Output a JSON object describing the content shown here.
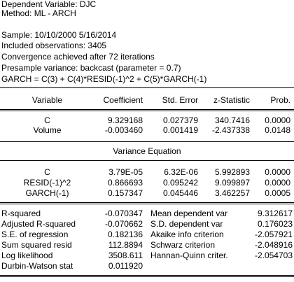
{
  "header": {
    "dependent": "Dependent Variable: DJC",
    "method": "Method: ML - ARCH",
    "sample": "Sample: 10/10/2000 5/16/2014",
    "included": "Included observations: 3405",
    "convergence": "Convergence achieved after 72 iterations",
    "presample": "Presample variance: backcast (parameter = 0.7)",
    "garch_eq": "GARCH = C(3) + C(4)*RESID(-1)^2 + C(5)*GARCH(-1)"
  },
  "columns": {
    "variable": "Variable",
    "coefficient": "Coefficient",
    "std_error": "Std. Error",
    "z_statistic": "z-Statistic",
    "prob": "Prob."
  },
  "mean_rows": [
    {
      "variable": "C",
      "coefficient": "9.329168",
      "std_error": "0.027379",
      "z": "340.7416",
      "prob": "0.0000"
    },
    {
      "variable": "Volume",
      "coefficient": "-0.003460",
      "std_error": "0.001419",
      "z": "-2.437338",
      "prob": "0.0148"
    }
  ],
  "variance_title": "Variance Equation",
  "variance_rows": [
    {
      "variable": "C",
      "coefficient": "3.79E-05",
      "std_error": "6.32E-06",
      "z": "5.992893",
      "prob": "0.0000"
    },
    {
      "variable": "RESID(-1)^2",
      "coefficient": "0.866693",
      "std_error": "0.095242",
      "z": "9.099897",
      "prob": "0.0000"
    },
    {
      "variable": "GARCH(-1)",
      "coefficient": "0.157347",
      "std_error": "0.045446",
      "z": "3.462257",
      "prob": "0.0005"
    }
  ],
  "stats": [
    {
      "left_label": "R-squared",
      "left_value": "-0.070347",
      "right_label": "Mean dependent var",
      "right_value": "9.312617"
    },
    {
      "left_label": "Adjusted R-squared",
      "left_value": "-0.070662",
      "right_label": "S.D. dependent var",
      "right_value": "0.176023"
    },
    {
      "left_label": "S.E. of regression",
      "left_value": "0.182136",
      "right_label": "Akaike info criterion",
      "right_value": "-2.057921"
    },
    {
      "left_label": "Sum squared resid",
      "left_value": "112.8894",
      "right_label": "Schwarz criterion",
      "right_value": "-2.048916"
    },
    {
      "left_label": "Log likelihood",
      "left_value": "3508.611",
      "right_label": "Hannan-Quinn criter.",
      "right_value": "-2.054703"
    },
    {
      "left_label": "Durbin-Watson stat",
      "left_value": "0.011920",
      "right_label": "",
      "right_value": ""
    }
  ]
}
